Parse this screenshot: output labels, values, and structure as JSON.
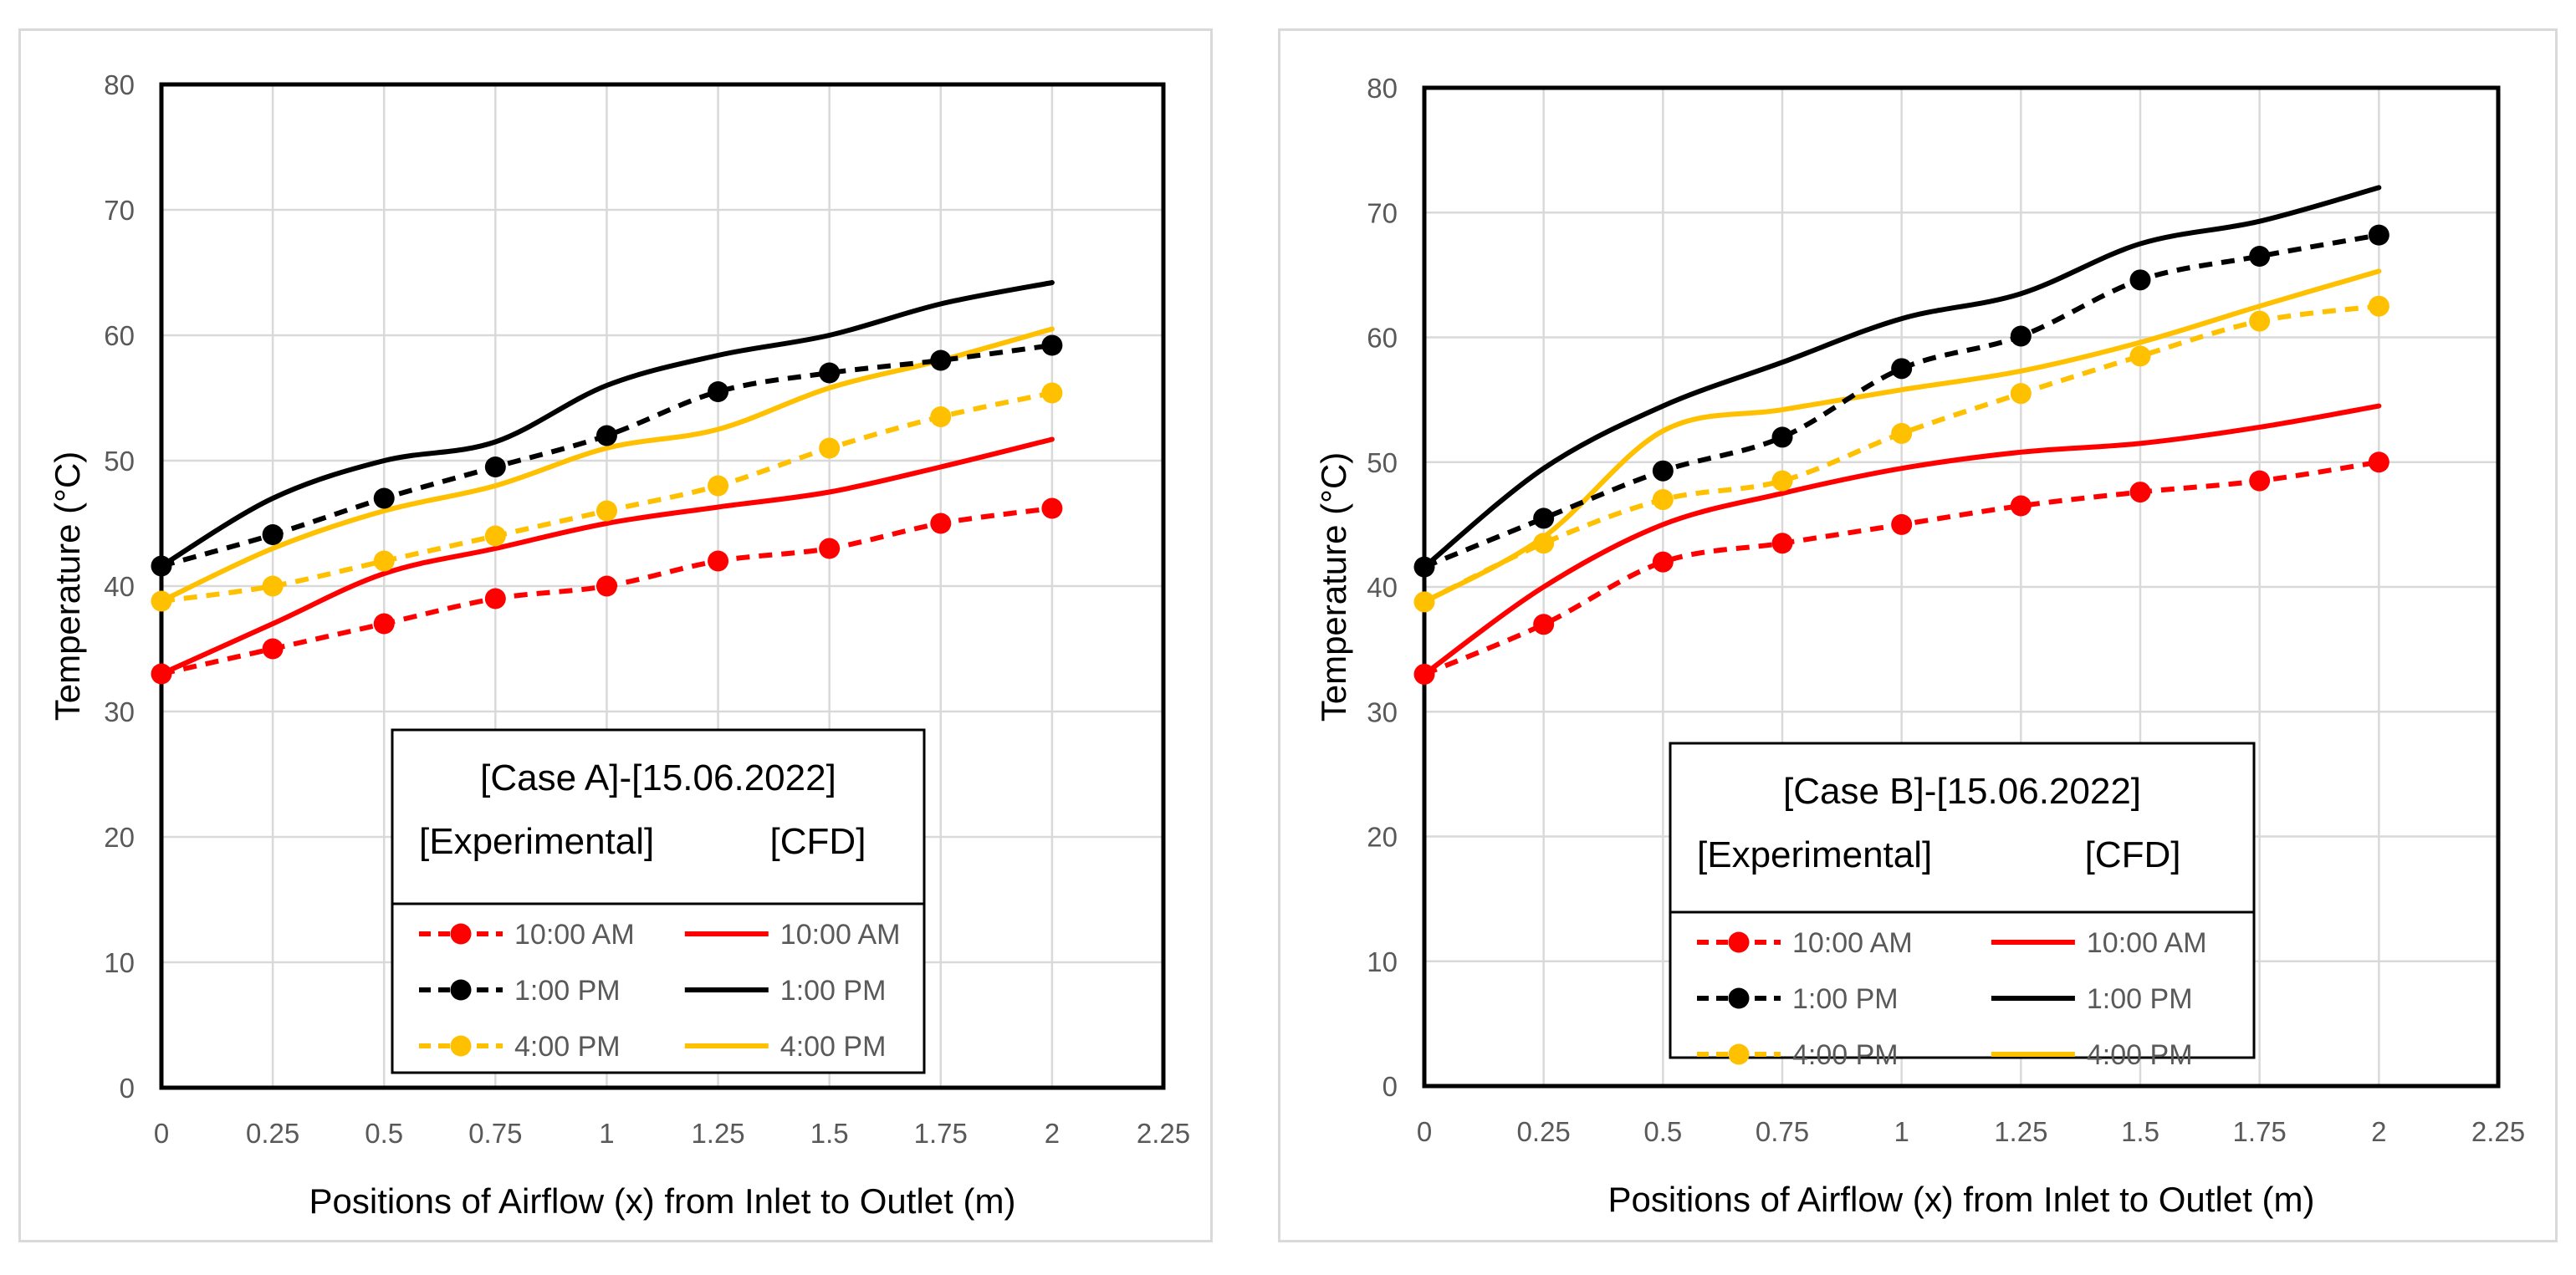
{
  "chart_data": [
    {
      "type": "line",
      "xlabel": "Positions of Airflow (x) from Inlet to Outlet (m)",
      "ylabel": "Temperature (°C)",
      "xlim": [
        0,
        2.25
      ],
      "ylim": [
        0,
        80
      ],
      "x_ticks": [
        "0",
        "0.25",
        "0.5",
        "0.75",
        "1",
        "1.25",
        "1.5",
        "1.75",
        "2",
        "2.25"
      ],
      "y_ticks": [
        "0",
        "10",
        "20",
        "30",
        "40",
        "50",
        "60",
        "70",
        "80"
      ],
      "grid": true,
      "x": [
        0,
        0.25,
        0.5,
        0.75,
        1,
        1.25,
        1.5,
        1.75,
        2
      ],
      "legend": {
        "title": "[Case A]-[15.06.2022]",
        "exp_header": "[Experimental]",
        "cfd_header": "[CFD]",
        "placement": "bottom-center"
      },
      "series": [
        {
          "name": "10:00 AM",
          "group": "Experimental",
          "style": "dashed-marker",
          "color": "#ff0000",
          "values": [
            33,
            35,
            37,
            39,
            40,
            42,
            43,
            45,
            46.2
          ]
        },
        {
          "name": "1:00 PM",
          "group": "Experimental",
          "style": "dashed-marker",
          "color": "#000000",
          "values": [
            41.6,
            44.1,
            47,
            49.5,
            52,
            55.5,
            57,
            58,
            59.2
          ]
        },
        {
          "name": "4:00 PM",
          "group": "Experimental",
          "style": "dashed-marker",
          "color": "#ffc000",
          "values": [
            38.8,
            40,
            42,
            44,
            46,
            48,
            51,
            53.5,
            55.4
          ]
        },
        {
          "name": "10:00 AM",
          "group": "CFD",
          "style": "solid",
          "color": "#ff0000",
          "values": [
            33,
            37,
            41,
            43,
            45,
            46.3,
            47.5,
            49.5,
            51.7
          ]
        },
        {
          "name": "1:00 PM",
          "group": "CFD",
          "style": "solid",
          "color": "#000000",
          "values": [
            41.6,
            47,
            50,
            51.5,
            56,
            58.4,
            60,
            62.5,
            64.2
          ]
        },
        {
          "name": "4:00 PM",
          "group": "CFD",
          "style": "solid",
          "color": "#ffc000",
          "values": [
            38.8,
            43,
            46,
            48,
            51,
            52.5,
            55.8,
            58,
            60.5
          ]
        }
      ]
    },
    {
      "type": "line",
      "xlabel": "Positions of Airflow (x) from Inlet to Outlet (m)",
      "ylabel": "Temperature (°C)",
      "xlim": [
        0,
        2.25
      ],
      "ylim": [
        0,
        80
      ],
      "x_ticks": [
        "0",
        "0.25",
        "0.5",
        "0.75",
        "1",
        "1.25",
        "1.5",
        "1.75",
        "2",
        "2.25"
      ],
      "y_ticks": [
        "0",
        "10",
        "20",
        "30",
        "40",
        "50",
        "60",
        "70",
        "80"
      ],
      "grid": true,
      "x": [
        0,
        0.25,
        0.5,
        0.75,
        1,
        1.25,
        1.5,
        1.75,
        2
      ],
      "legend": {
        "title": "[Case B]-[15.06.2022]",
        "exp_header": "[Experimental]",
        "cfd_header": "[CFD]",
        "placement": "bottom-center"
      },
      "series": [
        {
          "name": "10:00 AM",
          "group": "Experimental",
          "style": "dashed-marker",
          "color": "#ff0000",
          "values": [
            33,
            37,
            42,
            43.5,
            45,
            46.5,
            47.6,
            48.5,
            50
          ]
        },
        {
          "name": "1:00 PM",
          "group": "Experimental",
          "style": "dashed-marker",
          "color": "#000000",
          "values": [
            41.6,
            45.5,
            49.3,
            52,
            57.5,
            60.1,
            64.6,
            66.5,
            68.2
          ]
        },
        {
          "name": "4:00 PM",
          "group": "Experimental",
          "style": "dashed-marker",
          "color": "#ffc000",
          "values": [
            38.8,
            43.5,
            47,
            48.5,
            52.3,
            55.5,
            58.5,
            61.3,
            62.5
          ]
        },
        {
          "name": "10:00 AM",
          "group": "CFD",
          "style": "solid",
          "color": "#ff0000",
          "values": [
            33,
            40,
            45,
            47.5,
            49.5,
            50.8,
            51.5,
            52.8,
            54.5
          ]
        },
        {
          "name": "1:00 PM",
          "group": "CFD",
          "style": "solid",
          "color": "#000000",
          "values": [
            41.6,
            49.5,
            54.5,
            58,
            61.5,
            63.5,
            67.5,
            69.3,
            72
          ]
        },
        {
          "name": "4:00 PM",
          "group": "CFD",
          "style": "solid",
          "color": "#ffc000",
          "values": [
            38.8,
            44,
            52.5,
            54.2,
            55.8,
            57.3,
            59.6,
            62.5,
            65.3
          ]
        }
      ]
    }
  ]
}
